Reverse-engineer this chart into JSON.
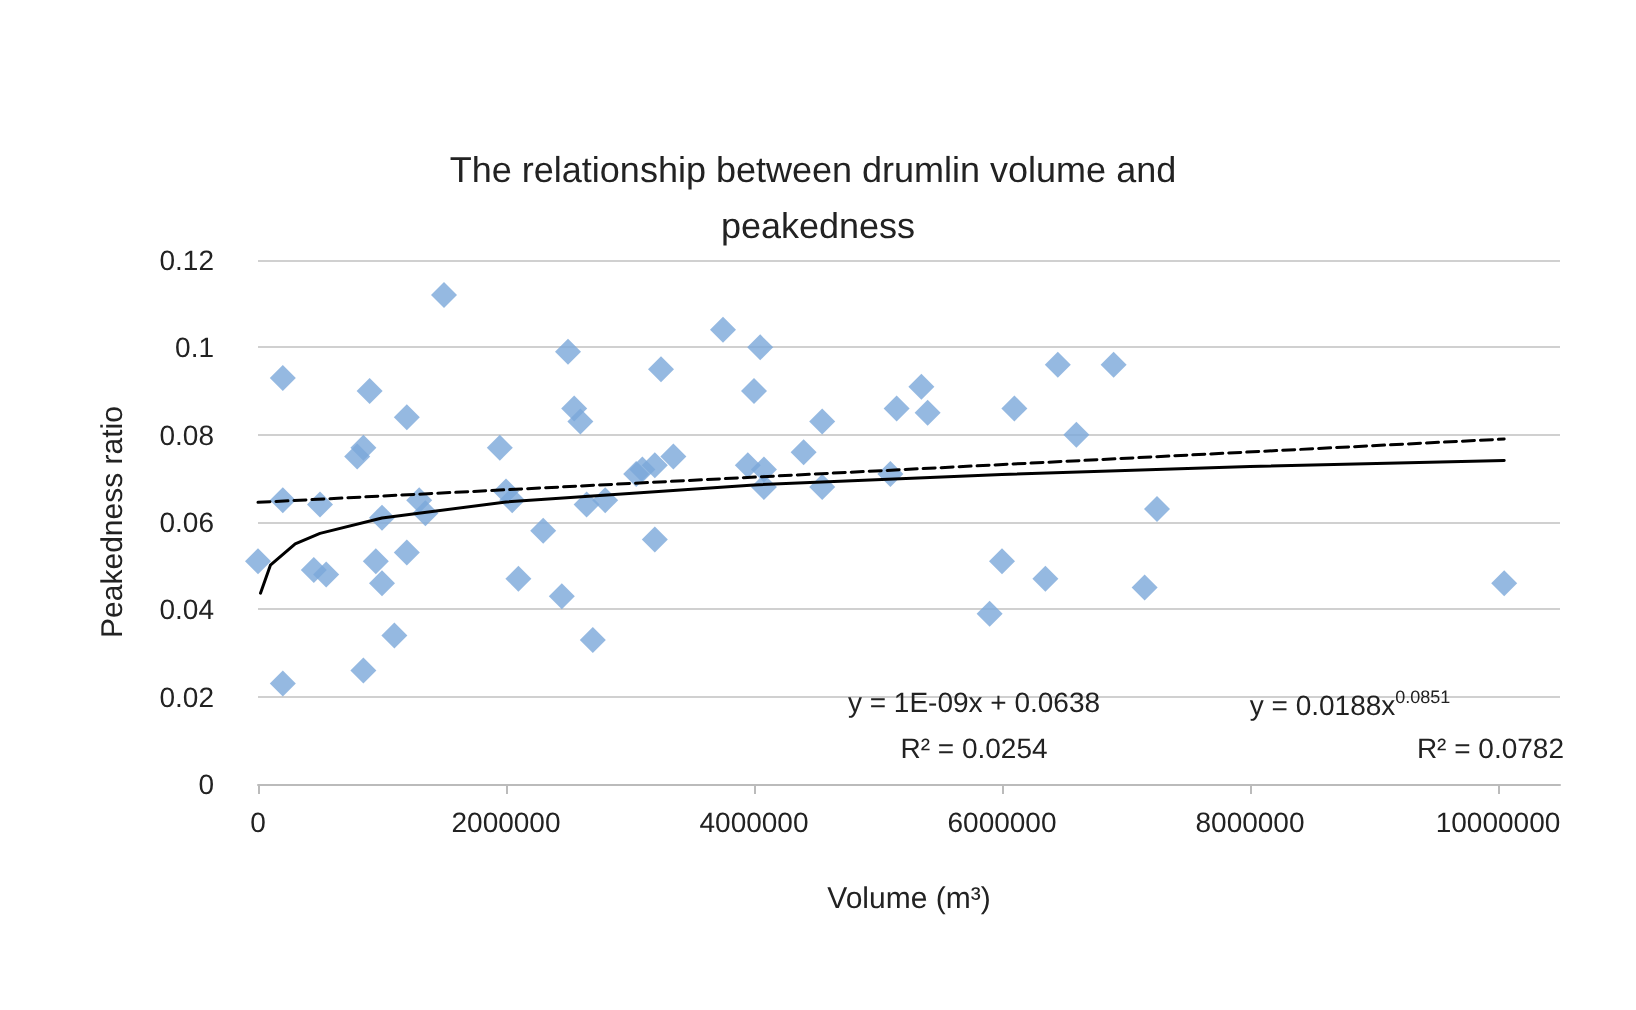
{
  "chart_data": {
    "type": "scatter",
    "title": "The relationship between drumlin volume and peakedness",
    "xlabel": "Volume (m³)",
    "ylabel": "Peakedness ratio",
    "xlim": [
      0,
      10500000
    ],
    "xticks": [
      0,
      2000000,
      4000000,
      6000000,
      8000000,
      10000000
    ],
    "ylim": [
      0,
      0.12
    ],
    "yticks": [
      0,
      0.02,
      0.04,
      0.06,
      0.08,
      0.1,
      0.12
    ],
    "grid": "y",
    "marker": "diamond",
    "annotations": [
      "y = 1E-09x + 0.0638",
      "R² = 0.0254",
      "y = 0.0188x$^{0.0851}$",
      "R² = 0.0782"
    ],
    "series": [
      {
        "color": "#7ba7d9",
        "x": [
          0,
          200000,
          200000,
          200000,
          500000,
          450000,
          550000,
          850000,
          800000,
          900000,
          1000000,
          950000,
          1000000,
          1100000,
          850000,
          1200000,
          1200000,
          1300000,
          1350000,
          1500000,
          1950000,
          2000000,
          2050000,
          2100000,
          2300000,
          2450000,
          2500000,
          2550000,
          2600000,
          2650000,
          2800000,
          2700000,
          3050000,
          3100000,
          3200000,
          3350000,
          3200000,
          3250000,
          3750000,
          4050000,
          4000000,
          3950000,
          4080000,
          4080000,
          4400000,
          4550000,
          4550000,
          5100000,
          5150000,
          5350000,
          5400000,
          5900000,
          6000000,
          6100000,
          6350000,
          6450000,
          6600000,
          6900000,
          7150000,
          7250000,
          10050000
        ],
        "values": [
          0.051,
          0.093,
          0.065,
          0.023,
          0.064,
          0.049,
          0.048,
          0.077,
          0.075,
          0.09,
          0.061,
          0.051,
          0.046,
          0.034,
          0.026,
          0.084,
          0.053,
          0.065,
          0.062,
          0.112,
          0.077,
          0.067,
          0.065,
          0.047,
          0.058,
          0.043,
          0.099,
          0.086,
          0.083,
          0.064,
          0.065,
          0.033,
          0.071,
          0.072,
          0.073,
          0.075,
          0.056,
          0.095,
          0.104,
          0.1,
          0.09,
          0.073,
          0.072,
          0.068,
          0.076,
          0.083,
          0.068,
          0.071,
          0.086,
          0.091,
          0.085,
          0.039,
          0.051,
          0.086,
          0.047,
          0.096,
          0.08,
          0.096,
          0.045,
          0.063,
          0.046
        ]
      },
      {
        "type": "line",
        "color": "#000000",
        "line_style": "dashed",
        "marker": "none",
        "x": [
          0,
          10050000
        ],
        "values": [
          0.0645,
          0.079
        ]
      },
      {
        "type": "line",
        "color": "#000000",
        "line_style": "solid",
        "marker": "none",
        "x": [
          20000,
          100000,
          300000,
          500000,
          1000000,
          2000000,
          4000000,
          6000000,
          8000000,
          10050000
        ],
        "values": [
          0.0437,
          0.0501,
          0.055,
          0.0574,
          0.0609,
          0.0646,
          0.0685,
          0.0709,
          0.0727,
          0.0741
        ]
      }
    ]
  }
}
